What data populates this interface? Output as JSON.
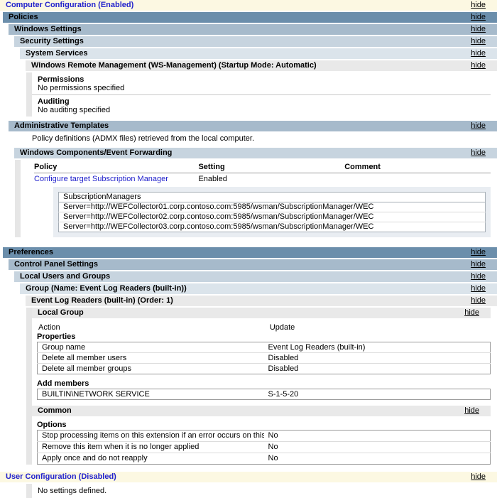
{
  "hide_label": "hide",
  "colors": {
    "banner_bg": "#FCF8E2",
    "title_blue": "#2222CC",
    "level1_bg": "#6B8EAB",
    "level2_bg": "#A6BACB",
    "level3_bg": "#C7D4DF",
    "level4_bg": "#DBE4EB",
    "level5_bg": "#E9E9E9",
    "container_bg": "#E9EDF2",
    "strip_gray": "#E6E6E6"
  },
  "computer_config": {
    "title": "Computer Configuration (Enabled)"
  },
  "policies": {
    "label": "Policies",
    "windows_settings": {
      "label": "Windows Settings"
    },
    "security_settings": {
      "label": "Security Settings"
    },
    "system_services": {
      "label": "System Services"
    },
    "winrm": {
      "label": "Windows Remote Management (WS-Management) (Startup Mode: Automatic)",
      "permissions_title": "Permissions",
      "permissions_text": "No permissions specified",
      "auditing_title": "Auditing",
      "auditing_text": "No auditing specified"
    },
    "admin_templates": {
      "label": "Administrative Templates",
      "note": "Policy definitions (ADMX files) retrieved from the local computer."
    },
    "event_forwarding": {
      "label": "Windows Components/Event Forwarding",
      "table": {
        "headers": [
          "Policy",
          "Setting",
          "Comment"
        ],
        "row": {
          "policy": "Configure target Subscription Manager",
          "setting": "Enabled",
          "comment": ""
        }
      },
      "subscription_box": {
        "title": "SubscriptionManagers",
        "servers": [
          "Server=http://WEFCollector01.corp.contoso.com:5985/wsman/SubscriptionManager/WEC",
          "Server=http://WEFCollector02.corp.contoso.com:5985/wsman/SubscriptionManager/WEC",
          "Server=http://WEFCollector03.corp.contoso.com:5985/wsman/SubscriptionManager/WEC"
        ]
      }
    }
  },
  "preferences": {
    "label": "Preferences",
    "control_panel": {
      "label": "Control Panel Settings"
    },
    "local_users_groups": {
      "label": "Local Users and Groups"
    },
    "group": {
      "label": "Group (Name: Event Log Readers (built-in))"
    },
    "group_item": {
      "label": "Event Log Readers (built-in) (Order: 1)"
    },
    "local_group": {
      "label": "Local Group",
      "action_label": "Action",
      "action_value": "Update",
      "properties_label": "Properties",
      "properties": [
        {
          "name": "Group name",
          "value": "Event Log Readers (built-in)"
        },
        {
          "name": "Delete all member users",
          "value": "Disabled"
        },
        {
          "name": "Delete all member groups",
          "value": "Disabled"
        }
      ],
      "add_members_label": "Add members",
      "members": [
        {
          "name": "BUILTIN\\NETWORK SERVICE",
          "value": "S-1-5-20"
        }
      ]
    },
    "common": {
      "label": "Common",
      "options_label": "Options",
      "options": [
        {
          "name": "Stop processing items on this extension if an error occurs on this item",
          "value": "No"
        },
        {
          "name": "Remove this item when it is no longer applied",
          "value": "No"
        },
        {
          "name": "Apply once and do not reapply",
          "value": "No"
        }
      ]
    }
  },
  "user_config": {
    "title": "User Configuration (Disabled)",
    "empty_text": "No settings defined."
  }
}
